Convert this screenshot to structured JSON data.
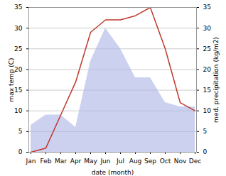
{
  "chart_data": {
    "type": "line",
    "xlabel": "date (month)",
    "ylabel": "max temp (C)",
    "y2label": "med. precipitation (kg/m2)",
    "categories": [
      "Jan",
      "Feb",
      "Mar",
      "Apr",
      "May",
      "Jun",
      "Jul",
      "Aug",
      "Sep",
      "Oct",
      "Nov",
      "Dec"
    ],
    "series": [
      {
        "type": "area",
        "axis": "y2",
        "color": "#b0b8e8",
        "values": [
          6.5,
          9,
          9,
          6,
          22,
          30,
          25,
          18,
          18,
          12,
          11,
          11
        ]
      },
      {
        "type": "line",
        "color": "#c0392b",
        "values": [
          0,
          1,
          9,
          17,
          29,
          32,
          32,
          33,
          35,
          25,
          12,
          10
        ]
      }
    ],
    "ylim": [
      0,
      35
    ],
    "yticks": [
      0,
      5,
      10,
      15,
      20,
      25,
      30,
      35
    ],
    "y2lim": [
      0,
      35
    ],
    "y2ticks": [
      0,
      5,
      10,
      15,
      20,
      25,
      30,
      35
    ],
    "grid": true
  }
}
